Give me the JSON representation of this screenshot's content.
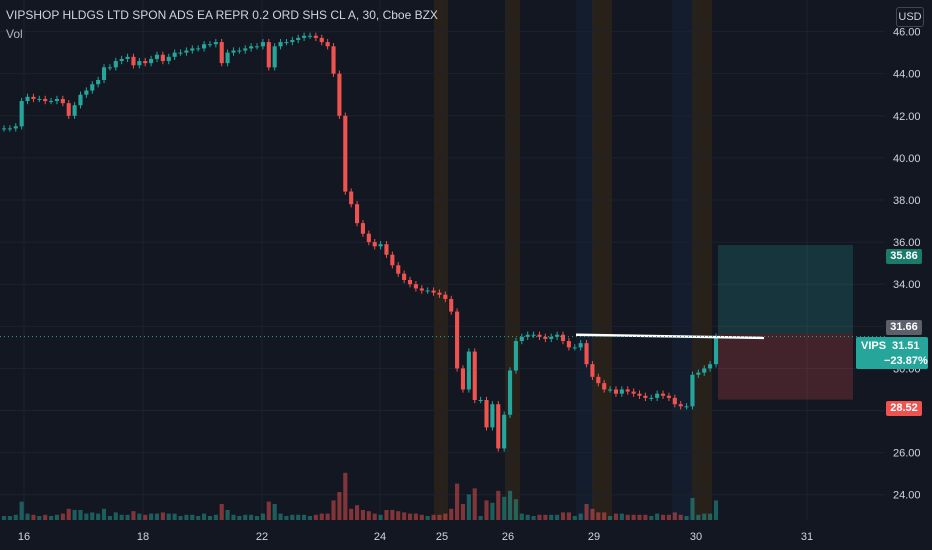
{
  "header": {
    "title": "VIPSHOP HLDGS LTD SPON ADS EA REPR 0.2 ORD SHS CL A, 30, Cboe BZX",
    "volume_label": "Vol",
    "currency": "USD"
  },
  "colors": {
    "up": "#26a69a",
    "down": "#ef5350",
    "background": "#131722",
    "grid": "#1e222d",
    "session_orange": "#3a2a14",
    "session_blue": "#142236"
  },
  "chart_data": {
    "type": "candlestick",
    "symbol": "VIPS",
    "interval": "30",
    "exchange": "Cboe BZX",
    "y_ticks": [
      "24.00",
      "26.00",
      "28.00",
      "30.00",
      "32.00",
      "34.00",
      "36.00",
      "38.00",
      "40.00",
      "42.00",
      "44.00",
      "46.00"
    ],
    "ylim": [
      22.8,
      47.5
    ],
    "x_ticks": [
      "16",
      "18",
      "22",
      "24",
      "25",
      "26",
      "29",
      "30",
      "31"
    ],
    "price_series": [
      41.4,
      41.4,
      41.5,
      42.7,
      42.9,
      42.8,
      42.8,
      42.7,
      42.7,
      42.8,
      42.6,
      42.0,
      42.5,
      43.0,
      43.2,
      43.5,
      43.7,
      44.3,
      44.3,
      44.6,
      44.7,
      44.8,
      44.4,
      44.6,
      44.5,
      44.7,
      44.9,
      44.6,
      44.8,
      45.0,
      45.0,
      45.1,
      45.2,
      45.2,
      45.4,
      45.4,
      45.5,
      44.5,
      45.0,
      45.1,
      45.1,
      45.2,
      45.3,
      45.3,
      45.5,
      44.3,
      45.3,
      45.5,
      45.5,
      45.6,
      45.7,
      45.8,
      45.8,
      45.7,
      45.5,
      45.3,
      44.0,
      42.0,
      38.4,
      37.8,
      36.9,
      36.4,
      36.0,
      35.8,
      35.9,
      35.4,
      34.9,
      34.5,
      34.2,
      34.0,
      33.8,
      33.7,
      33.7,
      33.6,
      33.5,
      33.3,
      32.7,
      30.0,
      29.0,
      30.8,
      28.5,
      28.5,
      27.2,
      28.3,
      26.2,
      27.8,
      29.9,
      31.3,
      31.5,
      31.6,
      31.6,
      31.5,
      31.4,
      31.5,
      31.6,
      31.3,
      31.0,
      31.0,
      31.2,
      30.2,
      29.6,
      29.3,
      29.0,
      29.0,
      28.8,
      29.0,
      28.9,
      28.8,
      28.7,
      28.6,
      28.6,
      28.8,
      28.7,
      28.6,
      28.3,
      28.2,
      28.2,
      29.7,
      29.8,
      30.0,
      30.2,
      31.5
    ],
    "sessions": [
      {
        "type": "extended",
        "start": "24",
        "end": "25"
      },
      {
        "type": "extended",
        "start": "25",
        "end": "26"
      },
      {
        "type": "pre-market",
        "start": "26",
        "end": "29"
      },
      {
        "type": "extended",
        "start": "29",
        "end": "30"
      },
      {
        "type": "pre-market",
        "start": "30",
        "end": "30"
      }
    ],
    "horizontal_line": 31.5,
    "position": {
      "entry": 31.66,
      "target": 35.86,
      "stop": 28.52
    },
    "price_labels": {
      "target": "35.86",
      "entry": "31.66",
      "last_symbol": "VIPS",
      "last_price": "31.51",
      "change": "−23.87%",
      "stop": "28.52"
    }
  }
}
